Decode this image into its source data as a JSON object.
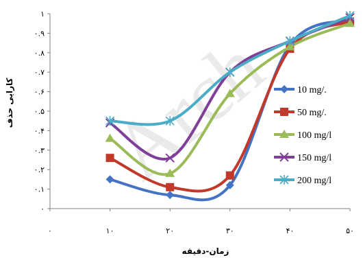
{
  "chart_data": {
    "type": "line",
    "title": "",
    "xlabel": "زمان-دقیقه",
    "ylabel": "کارایی حذف",
    "x": [
      10,
      20,
      30,
      40,
      50
    ],
    "x_tick_labels": [
      "۰",
      "۱۰",
      "۲۰",
      "۳۰",
      "۴۰",
      "۵۰"
    ],
    "x_tick_values": [
      0,
      10,
      20,
      30,
      40,
      50
    ],
    "xlim": [
      0,
      50
    ],
    "y_tick_labels": [
      "۰",
      "۰.۱",
      "۰.۲",
      "۰.۳",
      "۰.۴",
      "۰.۵",
      "۰.۶",
      "۰.۷",
      "۰.۸",
      "۰.۹",
      "۱"
    ],
    "y_tick_values": [
      0,
      0.1,
      0.2,
      0.3,
      0.4,
      0.5,
      0.6,
      0.7,
      0.8,
      0.9,
      1.0
    ],
    "ylim": [
      0,
      1
    ],
    "grid": false,
    "legend_position": "right",
    "series": [
      {
        "name": "10 mg/.",
        "values": [
          0.15,
          0.07,
          0.12,
          0.84,
          0.97
        ],
        "color": "#4472C4",
        "marker": "diamond"
      },
      {
        "name": "50 mg/.",
        "values": [
          0.26,
          0.11,
          0.17,
          0.82,
          0.96
        ],
        "color": "#C0392B",
        "marker": "square"
      },
      {
        "name": "100 mg/l",
        "values": [
          0.36,
          0.18,
          0.59,
          0.83,
          0.95
        ],
        "color": "#9BBB59",
        "marker": "triangle"
      },
      {
        "name": "150 mg/l",
        "values": [
          0.44,
          0.26,
          0.7,
          0.86,
          0.98
        ],
        "color": "#7F3F98",
        "marker": "x"
      },
      {
        "name": "200 mg/l",
        "values": [
          0.45,
          0.45,
          0.7,
          0.86,
          0.99
        ],
        "color": "#4BACC6",
        "marker": "star"
      }
    ],
    "watermark": "Arch"
  }
}
